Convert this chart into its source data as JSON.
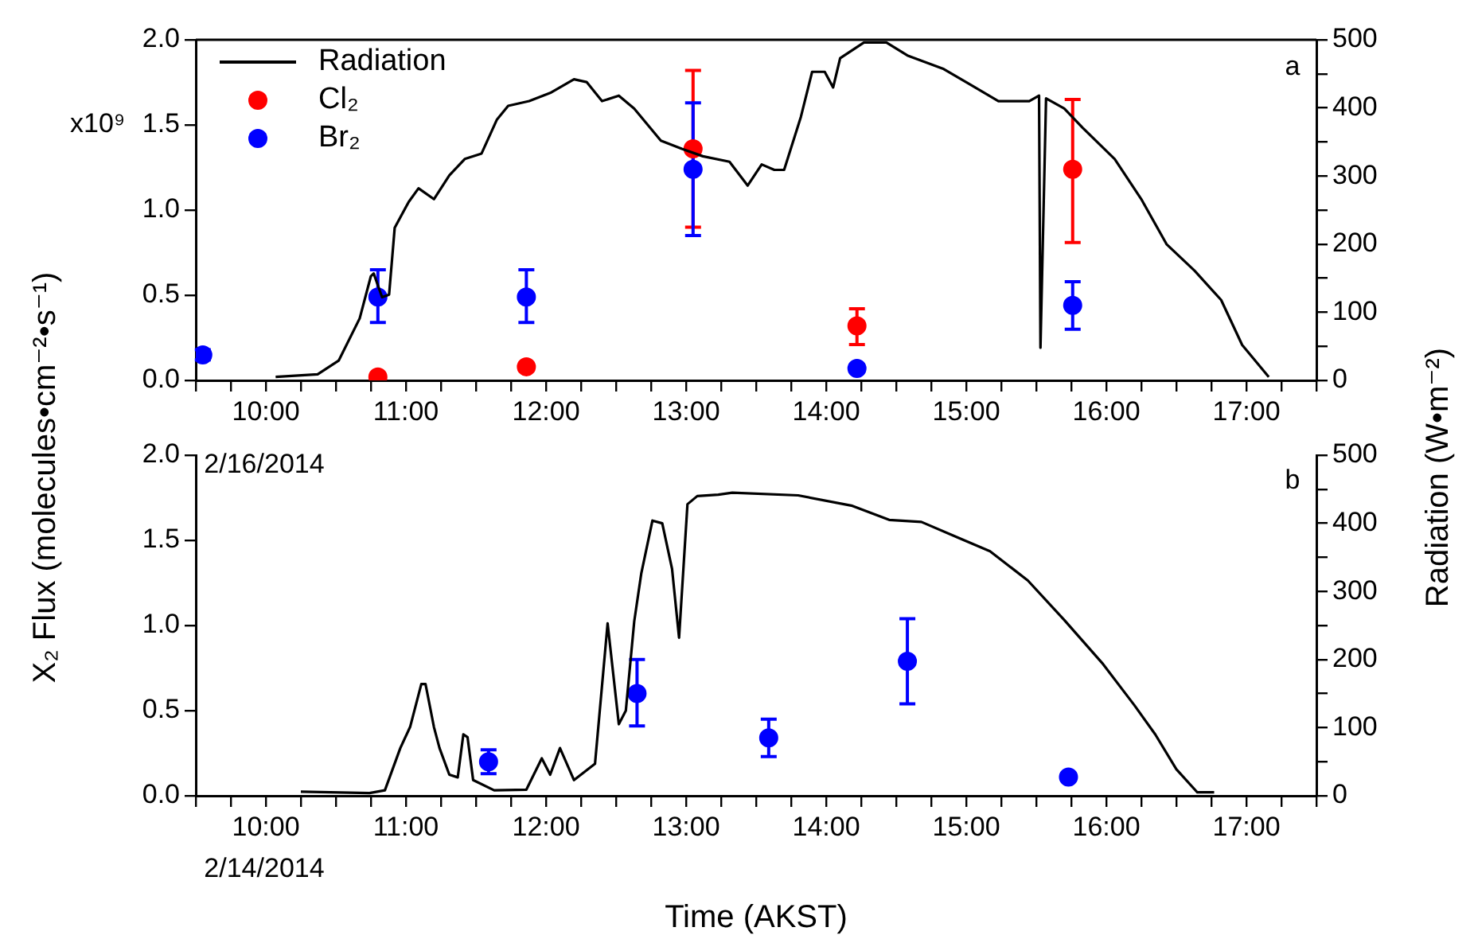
{
  "chart_data": [
    {
      "type": "scatter",
      "legend": "top left",
      "grid": false,
      "annotations": [
        "x10⁹",
        "a",
        "2/16/2014"
      ],
      "xlim": [
        9.5,
        17.5
      ],
      "xticks": [
        {
          "value": 9.5,
          "label": null
        },
        {
          "value": 9.75,
          "label": null
        },
        {
          "value": 10,
          "label": "10:00"
        },
        {
          "value": 10.25,
          "label": null
        },
        {
          "value": 10.5,
          "label": null
        },
        {
          "value": 10.75,
          "label": null
        },
        {
          "value": 11,
          "label": "11:00"
        },
        {
          "value": 11.25,
          "label": null
        },
        {
          "value": 11.5,
          "label": null
        },
        {
          "value": 11.75,
          "label": null
        },
        {
          "value": 12,
          "label": "12:00"
        },
        {
          "value": 12.25,
          "label": null
        },
        {
          "value": 12.5,
          "label": null
        },
        {
          "value": 12.75,
          "label": null
        },
        {
          "value": 13,
          "label": "13:00"
        },
        {
          "value": 13.25,
          "label": null
        },
        {
          "value": 13.5,
          "label": null
        },
        {
          "value": 13.75,
          "label": null
        },
        {
          "value": 14,
          "label": "14:00"
        },
        {
          "value": 14.25,
          "label": null
        },
        {
          "value": 14.5,
          "label": null
        },
        {
          "value": 14.75,
          "label": null
        },
        {
          "value": 15,
          "label": "15:00"
        },
        {
          "value": 15.25,
          "label": null
        },
        {
          "value": 15.5,
          "label": null
        },
        {
          "value": 15.75,
          "label": null
        },
        {
          "value": 16,
          "label": "16:00"
        },
        {
          "value": 16.25,
          "label": null
        },
        {
          "value": 16.5,
          "label": null
        },
        {
          "value": 16.75,
          "label": null
        },
        {
          "value": 17,
          "label": "17:00"
        },
        {
          "value": 17.25,
          "label": null
        },
        {
          "value": 17.5,
          "label": null
        }
      ],
      "ylim": [
        0,
        2
      ],
      "yticks": [
        {
          "value": 0,
          "label": "0.0"
        },
        {
          "value": 0.5,
          "label": "0.5"
        },
        {
          "value": 1,
          "label": "1.0"
        },
        {
          "value": 1.5,
          "label": "1.5"
        },
        {
          "value": 2,
          "label": "2.0"
        }
      ],
      "y2lim": [
        0,
        500
      ],
      "y2ticks": [
        0,
        {
          "value": 50,
          "label": null
        },
        100,
        {
          "value": 150,
          "label": null
        },
        200,
        {
          "value": 250,
          "label": null
        },
        300,
        {
          "value": 350,
          "label": null
        },
        400,
        {
          "value": 450,
          "label": null
        },
        500
      ],
      "series": [
        {
          "name": "Radiation",
          "type": "line",
          "axis": "y2",
          "color": "#000000",
          "line_style": "solid",
          "marker": "none",
          "x": [
            10.07,
            10.37,
            10.52,
            10.67,
            10.75,
            10.77,
            10.83,
            10.88,
            10.92,
            11.02,
            11.09,
            11.2,
            11.31,
            11.42,
            11.54,
            11.65,
            11.73,
            11.88,
            12.03,
            12.2,
            12.29,
            12.4,
            12.52,
            12.63,
            12.82,
            12.97,
            13.12,
            13.31,
            13.44,
            13.54,
            13.63,
            13.7,
            13.82,
            13.9,
            13.99,
            14.05,
            14.1,
            14.27,
            14.43,
            14.58,
            14.84,
            15.03,
            15.23,
            15.45,
            15.52,
            15.53,
            15.57,
            15.7,
            15.83,
            16.06,
            16.25,
            16.43,
            16.63,
            16.82,
            16.97,
            17.16
          ],
          "values": [
            5,
            9,
            29,
            91,
            153,
            157,
            122,
            126,
            224,
            262,
            282,
            266,
            301,
            325,
            333,
            383,
            403,
            410,
            422,
            442,
            438,
            410,
            418,
            399,
            352,
            340,
            329,
            321,
            286,
            317,
            309,
            309,
            387,
            453,
            453,
            430,
            473,
            496,
            496,
            477,
            457,
            434,
            410,
            410,
            418,
            48,
            414,
            399,
            371,
            325,
            266,
            200,
            161,
            118,
            52,
            5
          ]
        },
        {
          "name": "Cl₂",
          "type": "scatter",
          "color": "#ff0000",
          "x": [
            10.8,
            11.86,
            13.05,
            14.22,
            15.76
          ],
          "values": [
            0.02,
            0.08,
            1.36,
            0.32,
            1.24
          ],
          "errors": [
            null,
            null,
            [
              0.9,
              1.82
            ],
            [
              0.21,
              0.42
            ],
            [
              0.81,
              1.65
            ]
          ]
        },
        {
          "name": "Br₂",
          "type": "scatter",
          "color": "#0000ff",
          "x": [
            9.55,
            10.8,
            11.86,
            13.05,
            14.22,
            15.76
          ],
          "values": [
            0.15,
            0.49,
            0.49,
            1.24,
            0.07,
            0.44
          ],
          "errors": [
            [
              0.12,
              0.18
            ],
            [
              0.34,
              0.65
            ],
            [
              0.34,
              0.65
            ],
            [
              0.85,
              1.63
            ],
            null,
            [
              0.3,
              0.58
            ]
          ]
        }
      ]
    },
    {
      "type": "scatter",
      "grid": false,
      "xlabel": "Time (AKST)",
      "ylabel": "X₂ Flux (molecules•cm⁻²•s⁻¹)",
      "y2label": "Radiation (W•m⁻²)",
      "annotations": [
        "b",
        "2/14/2014"
      ],
      "xlim": [
        9.5,
        17.5
      ],
      "xticks": [
        {
          "value": 9.5,
          "label": null
        },
        {
          "value": 9.75,
          "label": null
        },
        {
          "value": 10,
          "label": "10:00"
        },
        {
          "value": 10.25,
          "label": null
        },
        {
          "value": 10.5,
          "label": null
        },
        {
          "value": 10.75,
          "label": null
        },
        {
          "value": 11,
          "label": "11:00"
        },
        {
          "value": 11.25,
          "label": null
        },
        {
          "value": 11.5,
          "label": null
        },
        {
          "value": 11.75,
          "label": null
        },
        {
          "value": 12,
          "label": "12:00"
        },
        {
          "value": 12.25,
          "label": null
        },
        {
          "value": 12.5,
          "label": null
        },
        {
          "value": 12.75,
          "label": null
        },
        {
          "value": 13,
          "label": "13:00"
        },
        {
          "value": 13.25,
          "label": null
        },
        {
          "value": 13.5,
          "label": null
        },
        {
          "value": 13.75,
          "label": null
        },
        {
          "value": 14,
          "label": "14:00"
        },
        {
          "value": 14.25,
          "label": null
        },
        {
          "value": 14.5,
          "label": null
        },
        {
          "value": 14.75,
          "label": null
        },
        {
          "value": 15,
          "label": "15:00"
        },
        {
          "value": 15.25,
          "label": null
        },
        {
          "value": 15.5,
          "label": null
        },
        {
          "value": 15.75,
          "label": null
        },
        {
          "value": 16,
          "label": "16:00"
        },
        {
          "value": 16.25,
          "label": null
        },
        {
          "value": 16.5,
          "label": null
        },
        {
          "value": 16.75,
          "label": null
        },
        {
          "value": 17,
          "label": "17:00"
        },
        {
          "value": 17.25,
          "label": null
        },
        {
          "value": 17.5,
          "label": null
        }
      ],
      "ylim": [
        0,
        2
      ],
      "yticks": [
        {
          "value": 0,
          "label": "0.0"
        },
        {
          "value": 0.5,
          "label": "0.5"
        },
        {
          "value": 1,
          "label": "1.0"
        },
        {
          "value": 1.5,
          "label": "1.5"
        },
        {
          "value": 2,
          "label": "2.0"
        }
      ],
      "y2lim": [
        0,
        500
      ],
      "y2ticks": [
        0,
        {
          "value": 50,
          "label": null
        },
        100,
        {
          "value": 150,
          "label": null
        },
        200,
        {
          "value": 250,
          "label": null
        },
        300,
        {
          "value": 350,
          "label": null
        },
        400,
        {
          "value": 450,
          "label": null
        },
        500
      ],
      "series": [
        {
          "type": "line",
          "axis": "y2",
          "color": "#000000",
          "line_style": "solid",
          "marker": "none",
          "x": [
            10.25,
            10.74,
            10.85,
            10.96,
            11.03,
            11.11,
            11.14,
            11.2,
            11.24,
            11.31,
            11.37,
            11.41,
            11.44,
            11.48,
            11.63,
            11.86,
            11.97,
            12.03,
            12.1,
            12.2,
            12.35,
            12.44,
            12.52,
            12.57,
            12.63,
            12.68,
            12.76,
            12.83,
            12.9,
            12.95,
            13.01,
            13.08,
            13.23,
            13.33,
            13.8,
            14.18,
            14.45,
            14.68,
            14.94,
            15.17,
            15.44,
            15.7,
            15.97,
            16.2,
            16.35,
            16.5,
            16.65,
            16.77
          ],
          "values": [
            6,
            4,
            8,
            70,
            101,
            164,
            164,
            101,
            70,
            31,
            27,
            90,
            86,
            23,
            8,
            9,
            55,
            31,
            70,
            23,
            47,
            253,
            105,
            125,
            256,
            326,
            404,
            400,
            333,
            232,
            428,
            440,
            442,
            445,
            441,
            426,
            405,
            402,
            379,
            359,
            316,
            258,
            195,
            133,
            90,
            39,
            5,
            5
          ]
        },
        {
          "type": "scatter",
          "color": "#0000ff",
          "x": [
            11.59,
            12.65,
            13.59,
            14.58,
            15.73
          ],
          "values": [
            0.2,
            0.6,
            0.34,
            0.79,
            0.11
          ],
          "errors": [
            [
              0.13,
              0.27
            ],
            [
              0.41,
              0.8
            ],
            [
              0.23,
              0.45
            ],
            [
              0.54,
              1.04
            ],
            [
              0.09,
              0.13
            ]
          ]
        }
      ]
    }
  ]
}
